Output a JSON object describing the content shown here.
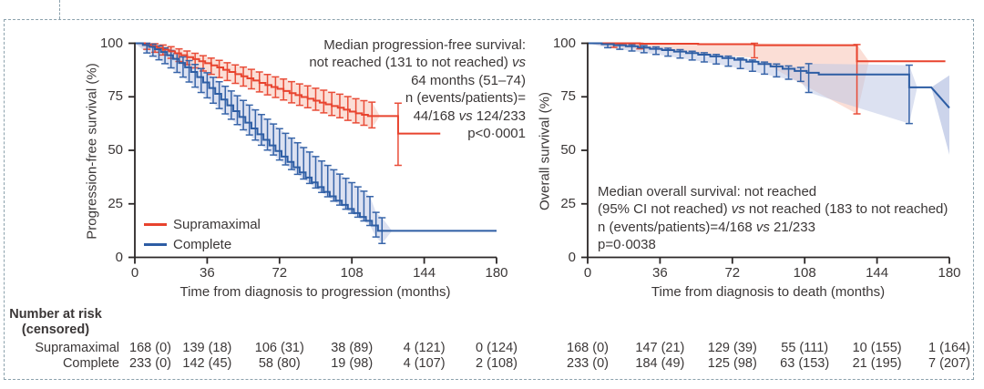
{
  "colors": {
    "supramaximal": "#e8432e",
    "supramaximal_band": "#f7c3b4",
    "complete": "#2d5da4",
    "complete_band": "#bfc9e6",
    "axis": "#2b2727",
    "border": "#8ba1ac"
  },
  "legend": {
    "items": [
      {
        "label": "Supramaximal",
        "color_key": "supramaximal"
      },
      {
        "label": "Complete",
        "color_key": "complete"
      }
    ]
  },
  "risk_table": {
    "title_line1": "Number at risk",
    "title_line2": "(censored)",
    "row_labels": [
      "Supramaximal",
      "Complete"
    ],
    "left_values": [
      [
        "168 (0)",
        "139 (18)",
        "106 (31)",
        "38 (89)",
        "4 (121)",
        "0 (124)"
      ],
      [
        "233 (0)",
        "142 (45)",
        "58 (80)",
        "19 (98)",
        "4 (107)",
        "2 (108)"
      ]
    ],
    "right_values": [
      [
        "168 (0)",
        "147 (21)",
        "129 (39)",
        "55 (111)",
        "10 (155)",
        "1 (164)"
      ],
      [
        "233 (0)",
        "184 (49)",
        "125 (98)",
        "63 (153)",
        "21 (195)",
        "7 (207)"
      ]
    ]
  },
  "chart_data": [
    {
      "type": "line",
      "subtype": "kaplan-meier-step",
      "ylabel": "Progression-free survival (%)",
      "xlabel": "Time from diagnosis to progression (months)",
      "xlim": [
        0,
        180
      ],
      "ylim": [
        0,
        100
      ],
      "x_ticks": [
        0,
        36,
        72,
        108,
        144,
        180
      ],
      "y_ticks": [
        0,
        25,
        50,
        75,
        100
      ],
      "grid": false,
      "legend_position": "lower-left-inside",
      "annotation": {
        "align": "right",
        "lines": [
          "Median progression-free survival:",
          "not reached (131 to not reached) vs",
          "64 months (51–74)",
          "n (events/patients)=",
          "44/168 vs 124/233",
          "p<0·0001"
        ]
      },
      "series": [
        {
          "name": "Supramaximal",
          "color_key": "supramaximal",
          "band_color_key": "supramaximal_band",
          "band_until": 122,
          "points": [
            [
              0,
              100
            ],
            [
              5,
              99.3
            ],
            [
              8,
              98.6
            ],
            [
              11,
              97.8
            ],
            [
              14,
              97
            ],
            [
              17,
              96.2
            ],
            [
              20,
              95.3
            ],
            [
              23,
              94.4
            ],
            [
              26,
              93.5
            ],
            [
              29,
              92.6
            ],
            [
              32,
              91.6
            ],
            [
              35,
              90.7
            ],
            [
              38,
              89.7
            ],
            [
              41,
              88.7
            ],
            [
              44,
              87.6
            ],
            [
              47,
              86.6
            ],
            [
              50,
              85.6
            ],
            [
              53,
              84.6
            ],
            [
              56,
              83.6
            ],
            [
              59,
              82.6
            ],
            [
              62,
              81.5
            ],
            [
              65,
              80.5
            ],
            [
              68,
              79.6
            ],
            [
              71,
              78.7
            ],
            [
              74,
              77.7
            ],
            [
              77,
              76.7
            ],
            [
              80,
              75.8
            ],
            [
              83,
              74.9
            ],
            [
              86,
              74.1
            ],
            [
              89,
              73.2
            ],
            [
              92,
              72.3
            ],
            [
              95,
              71.5
            ],
            [
              98,
              70.7
            ],
            [
              101,
              69.9
            ],
            [
              104,
              69
            ],
            [
              107,
              68.1
            ],
            [
              110,
              67.3
            ],
            [
              113,
              66.6
            ],
            [
              116,
              66
            ],
            [
              131,
              57.8
            ],
            [
              152,
              57.8
            ]
          ],
          "bars": [
            [
              6,
              97.2,
              100
            ],
            [
              10,
              95.8,
              99.8
            ],
            [
              14,
              94.5,
              99.2
            ],
            [
              18,
              93,
              98.4
            ],
            [
              22,
              91.5,
              97.4
            ],
            [
              26,
              90,
              96.4
            ],
            [
              30,
              88.5,
              95.3
            ],
            [
              34,
              87,
              94.2
            ],
            [
              38,
              85.5,
              93.1
            ],
            [
              42,
              84,
              92
            ],
            [
              46,
              82.6,
              90.9
            ],
            [
              50,
              81.3,
              89.9
            ],
            [
              54,
              80,
              88.9
            ],
            [
              58,
              78.7,
              87.8
            ],
            [
              62,
              77.3,
              86.6
            ],
            [
              66,
              75.9,
              85.4
            ],
            [
              70,
              74.7,
              84.3
            ],
            [
              74,
              73.5,
              83.3
            ],
            [
              78,
              72.2,
              82.1
            ],
            [
              82,
              71,
              81
            ],
            [
              86,
              69.9,
              80.1
            ],
            [
              90,
              68.7,
              79
            ],
            [
              94,
              67.5,
              78.1
            ],
            [
              98,
              66.3,
              77.1
            ],
            [
              102,
              65.2,
              76.2
            ],
            [
              106,
              64,
              75.1
            ],
            [
              110,
              62.8,
              74.1
            ],
            [
              114,
              61.7,
              73.2
            ],
            [
              118,
              60.5,
              72.5
            ],
            [
              131,
              43,
              72
            ]
          ]
        },
        {
          "name": "Complete",
          "color_key": "complete",
          "band_color_key": "complete_band",
          "band_until": 128,
          "points": [
            [
              0,
              100
            ],
            [
              4,
              99.2
            ],
            [
              7,
              98.3
            ],
            [
              10,
              97.2
            ],
            [
              13,
              95.9
            ],
            [
              16,
              94.4
            ],
            [
              19,
              92.7
            ],
            [
              22,
              90.8
            ],
            [
              25,
              88.8
            ],
            [
              28,
              86.6
            ],
            [
              31,
              84.2
            ],
            [
              34,
              81.7
            ],
            [
              37,
              79.1
            ],
            [
              40,
              76.4
            ],
            [
              43,
              73.7
            ],
            [
              46,
              71
            ],
            [
              49,
              68.3
            ],
            [
              52,
              65.6
            ],
            [
              55,
              62.9
            ],
            [
              58,
              60.2
            ],
            [
              61,
              57.5
            ],
            [
              64,
              54.9
            ],
            [
              67,
              52.3
            ],
            [
              70,
              49.7
            ],
            [
              73,
              47.1
            ],
            [
              76,
              44.6
            ],
            [
              79,
              42.1
            ],
            [
              82,
              39.7
            ],
            [
              85,
              37.3
            ],
            [
              88,
              35
            ],
            [
              91,
              32.8
            ],
            [
              94,
              30.6
            ],
            [
              97,
              28.5
            ],
            [
              100,
              26.5
            ],
            [
              103,
              24.5
            ],
            [
              106,
              22.6
            ],
            [
              109,
              20.7
            ],
            [
              112,
              18.9
            ],
            [
              115,
              17.1
            ],
            [
              118,
              14.9
            ],
            [
              121,
              12.4
            ],
            [
              180,
              12.4
            ]
          ],
          "bars": [
            [
              6,
              95.5,
              100
            ],
            [
              9,
              94,
              99.6
            ],
            [
              12,
              92.3,
              98.8
            ],
            [
              15,
              90.5,
              97.8
            ],
            [
              18,
              88.5,
              96.6
            ],
            [
              21,
              86.4,
              95.2
            ],
            [
              24,
              84.2,
              93.6
            ],
            [
              27,
              81.9,
              91.9
            ],
            [
              30,
              79.5,
              90.1
            ],
            [
              33,
              77,
              88.2
            ],
            [
              36,
              74.5,
              86.2
            ],
            [
              39,
              72,
              84.1
            ],
            [
              42,
              69.5,
              82
            ],
            [
              45,
              67,
              79.9
            ],
            [
              48,
              64.5,
              77.7
            ],
            [
              51,
              62,
              75.5
            ],
            [
              54,
              59.6,
              73.3
            ],
            [
              57,
              57.2,
              71.1
            ],
            [
              60,
              54.8,
              68.9
            ],
            [
              63,
              52.4,
              66.7
            ],
            [
              66,
              50.1,
              64.5
            ],
            [
              69,
              47.8,
              62.3
            ],
            [
              72,
              45.5,
              60.1
            ],
            [
              75,
              43.2,
              57.9
            ],
            [
              78,
              41,
              55.7
            ],
            [
              81,
              38.8,
              53.5
            ],
            [
              84,
              36.6,
              51.3
            ],
            [
              87,
              34.5,
              49.2
            ],
            [
              90,
              32.4,
              47.1
            ],
            [
              93,
              30.3,
              45
            ],
            [
              96,
              28.3,
              42.9
            ],
            [
              99,
              26.3,
              40.9
            ],
            [
              102,
              24.4,
              38.9
            ],
            [
              105,
              22.5,
              36.9
            ],
            [
              108,
              20.6,
              34.9
            ],
            [
              111,
              18.8,
              32.9
            ],
            [
              114,
              17,
              30.9
            ],
            [
              117,
              14.9,
              28.4
            ],
            [
              120,
              9.5,
              21
            ],
            [
              123,
              6.5,
              18.5
            ]
          ]
        }
      ]
    },
    {
      "type": "line",
      "subtype": "kaplan-meier-step",
      "ylabel": "Overall survival (%)",
      "xlabel": "Time from diagnosis to death (months)",
      "xlim": [
        0,
        180
      ],
      "ylim": [
        0,
        100
      ],
      "x_ticks": [
        0,
        36,
        72,
        108,
        144,
        180
      ],
      "y_ticks": [
        0,
        25,
        50,
        75,
        100
      ],
      "grid": false,
      "annotation": {
        "align": "left",
        "lines": [
          "Median overall survival: not reached",
          "(95% CI not reached) vs not reached (183 to not reached)",
          "n (events/patients)=4/168 vs 21/233",
          "p=0·0038"
        ]
      },
      "series": [
        {
          "name": "Supramaximal",
          "color_key": "supramaximal",
          "band_color_key": "supramaximal_band",
          "band_until": 140,
          "points": [
            [
              0,
              100
            ],
            [
              26,
              99.8
            ],
            [
              55,
              99.6
            ],
            [
              83,
              99.1
            ],
            [
              134,
              91.6
            ],
            [
              178,
              91.6
            ]
          ],
          "bars": [
            [
              13,
              98.1,
              100
            ],
            [
              26,
              97.4,
              100
            ],
            [
              83,
              93.2,
              100
            ],
            [
              134,
              67,
              99.4
            ]
          ]
        },
        {
          "name": "Complete",
          "color_key": "complete",
          "band_color_key": "complete_band",
          "band_until": 164,
          "band_extra": [
            [
              171,
              79.4
            ],
            [
              180,
              85
            ],
            [
              180,
              48
            ]
          ],
          "points": [
            [
              0,
              100
            ],
            [
              7,
              99.6
            ],
            [
              13,
              99.1
            ],
            [
              19,
              98.6
            ],
            [
              25,
              98
            ],
            [
              31,
              97.4
            ],
            [
              37,
              96.8
            ],
            [
              43,
              96.1
            ],
            [
              49,
              95.4
            ],
            [
              55,
              94.7
            ],
            [
              61,
              93.9
            ],
            [
              67,
              93.1
            ],
            [
              73,
              92.3
            ],
            [
              79,
              91.4
            ],
            [
              85,
              90.3
            ],
            [
              91,
              89.2
            ],
            [
              97,
              88.1
            ],
            [
              103,
              87.1
            ],
            [
              109,
              86.2
            ],
            [
              115,
              85.4
            ],
            [
              160,
              79.4
            ],
            [
              171,
              79.4
            ],
            [
              180,
              69.8,
              "L"
            ]
          ],
          "bars": [
            [
              10,
              97.9,
              100
            ],
            [
              16,
              97.2,
              99.8
            ],
            [
              22,
              96.4,
              99.4
            ],
            [
              28,
              95.6,
              98.9
            ],
            [
              34,
              94.8,
              98.3
            ],
            [
              40,
              94,
              97.7
            ],
            [
              46,
              93.1,
              97
            ],
            [
              52,
              92.2,
              96.3
            ],
            [
              58,
              91.3,
              95.6
            ],
            [
              64,
              90.3,
              94.8
            ],
            [
              70,
              89.3,
              94
            ],
            [
              76,
              88.2,
              93.1
            ],
            [
              82,
              86.9,
              92.2
            ],
            [
              88,
              85.6,
              91.2
            ],
            [
              94,
              84.3,
              90.3
            ],
            [
              100,
              83.2,
              89.4
            ],
            [
              106,
              82.2,
              88.7
            ],
            [
              110,
              77,
              90.5
            ],
            [
              160,
              62.5,
              89.8
            ]
          ]
        }
      ]
    }
  ]
}
